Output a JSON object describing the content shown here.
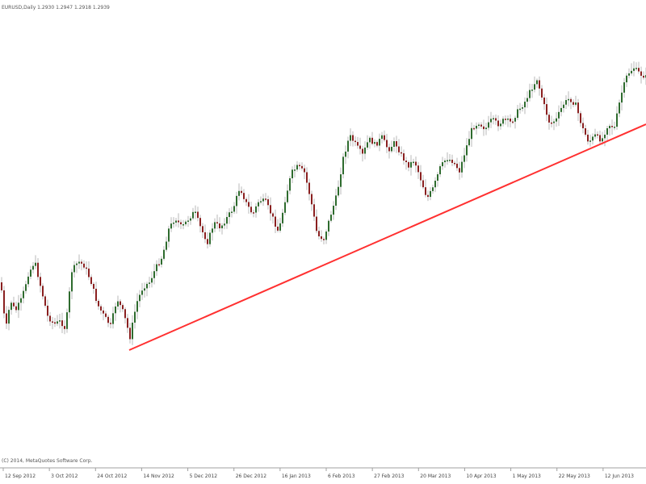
{
  "header": {
    "symbol_info": "EURUSD,Daily 1.2930 1.2947 1.2918 1.2939"
  },
  "footer": {
    "copyright": "(C) 2014, MetaQuotes Software Corp."
  },
  "colors": {
    "bull": "#2e6b2e",
    "bear": "#8a2020",
    "trendline": "#ff3030",
    "background": "#ffffff"
  },
  "chart_data": {
    "type": "candlestick",
    "title": "",
    "xlabel": "",
    "ylabel": "",
    "grid": false,
    "x_tick_labels": [
      "12 Sep 2012",
      "3 Oct 2012",
      "24 Oct 2012",
      "14 Nov 2012",
      "5 Dec 2012",
      "26 Dec 2012",
      "16 Jan 2013",
      "6 Feb 2013",
      "27 Feb 2013",
      "20 Mar 2013",
      "10 Apr 2013",
      "1 May 2013",
      "22 May 2013",
      "12 Jun 2013"
    ],
    "close_path": [
      [
        0,
        350
      ],
      [
        6,
        410
      ],
      [
        12,
        372
      ],
      [
        18,
        386
      ],
      [
        26,
        370
      ],
      [
        34,
        340
      ],
      [
        42,
        324
      ],
      [
        50,
        358
      ],
      [
        58,
        392
      ],
      [
        66,
        402
      ],
      [
        74,
        398
      ],
      [
        80,
        408
      ],
      [
        88,
        336
      ],
      [
        96,
        324
      ],
      [
        104,
        330
      ],
      [
        112,
        350
      ],
      [
        120,
        378
      ],
      [
        128,
        392
      ],
      [
        136,
        404
      ],
      [
        144,
        370
      ],
      [
        152,
        388
      ],
      [
        160,
        418
      ],
      [
        168,
        376
      ],
      [
        176,
        356
      ],
      [
        184,
        350
      ],
      [
        192,
        332
      ],
      [
        200,
        318
      ],
      [
        208,
        284
      ],
      [
        216,
        270
      ],
      [
        224,
        282
      ],
      [
        232,
        272
      ],
      [
        240,
        262
      ],
      [
        248,
        284
      ],
      [
        256,
        300
      ],
      [
        264,
        276
      ],
      [
        272,
        282
      ],
      [
        280,
        270
      ],
      [
        288,
        258
      ],
      [
        296,
        232
      ],
      [
        304,
        252
      ],
      [
        312,
        266
      ],
      [
        320,
        248
      ],
      [
        328,
        250
      ],
      [
        336,
        268
      ],
      [
        344,
        288
      ],
      [
        352,
        248
      ],
      [
        360,
        214
      ],
      [
        368,
        206
      ],
      [
        376,
        214
      ],
      [
        384,
        248
      ],
      [
        392,
        292
      ],
      [
        400,
        296
      ],
      [
        408,
        268
      ],
      [
        416,
        242
      ],
      [
        424,
        196
      ],
      [
        432,
        168
      ],
      [
        440,
        180
      ],
      [
        448,
        192
      ],
      [
        456,
        172
      ],
      [
        464,
        180
      ],
      [
        472,
        170
      ],
      [
        480,
        186
      ],
      [
        488,
        176
      ],
      [
        496,
        192
      ],
      [
        504,
        206
      ],
      [
        512,
        198
      ],
      [
        520,
        222
      ],
      [
        528,
        246
      ],
      [
        536,
        232
      ],
      [
        544,
        208
      ],
      [
        552,
        196
      ],
      [
        560,
        200
      ],
      [
        568,
        212
      ],
      [
        576,
        184
      ],
      [
        584,
        158
      ],
      [
        592,
        152
      ],
      [
        600,
        160
      ],
      [
        608,
        148
      ],
      [
        616,
        154
      ],
      [
        624,
        148
      ],
      [
        632,
        152
      ],
      [
        640,
        138
      ],
      [
        648,
        128
      ],
      [
        656,
        112
      ],
      [
        664,
        98
      ],
      [
        672,
        128
      ],
      [
        680,
        154
      ],
      [
        688,
        148
      ],
      [
        696,
        130
      ],
      [
        704,
        122
      ],
      [
        712,
        130
      ],
      [
        720,
        158
      ],
      [
        728,
        176
      ],
      [
        736,
        168
      ],
      [
        744,
        174
      ],
      [
        752,
        154
      ],
      [
        760,
        158
      ],
      [
        768,
        118
      ],
      [
        776,
        92
      ],
      [
        784,
        84
      ],
      [
        792,
        92
      ],
      [
        800,
        96
      ]
    ],
    "trendline": {
      "from": [
        160,
        434
      ],
      "to": [
        800,
        154
      ]
    }
  }
}
